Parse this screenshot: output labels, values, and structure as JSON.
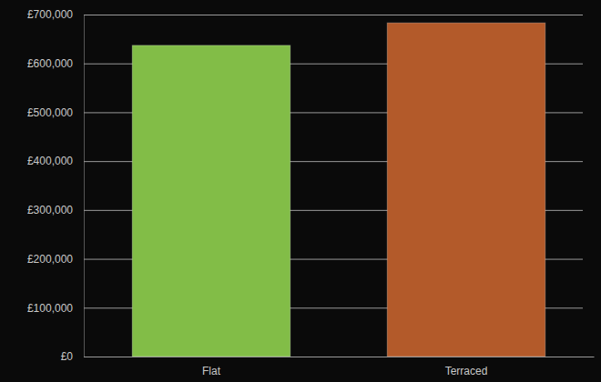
{
  "chart_data": {
    "type": "bar",
    "categories": [
      "Flat",
      "Terraced"
    ],
    "values": [
      637000,
      683000
    ],
    "colors": [
      "#82bd47",
      "#b35a2a"
    ],
    "ylim": [
      0,
      700000
    ],
    "yticks": [
      {
        "value": 0,
        "label": "£0"
      },
      {
        "value": 100000,
        "label": "£100,000"
      },
      {
        "value": 200000,
        "label": "£200,000"
      },
      {
        "value": 300000,
        "label": "£300,000"
      },
      {
        "value": 400000,
        "label": "£400,000"
      },
      {
        "value": 500000,
        "label": "£500,000"
      },
      {
        "value": 600000,
        "label": "£600,000"
      },
      {
        "value": 700000,
        "label": "£700,000"
      }
    ],
    "grid": true
  }
}
